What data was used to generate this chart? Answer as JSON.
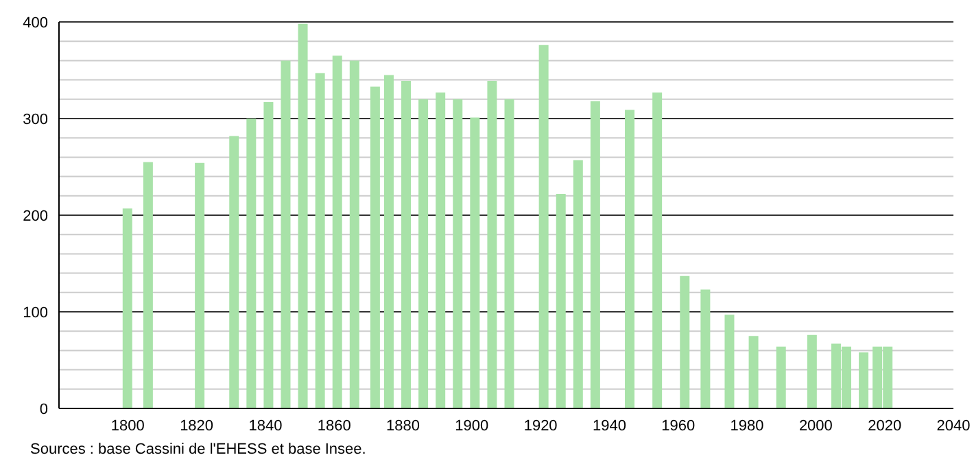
{
  "chart_data": {
    "type": "bar",
    "x": [
      1800,
      1806,
      1821,
      1831,
      1836,
      1841,
      1846,
      1851,
      1856,
      1861,
      1866,
      1872,
      1876,
      1881,
      1886,
      1891,
      1896,
      1901,
      1906,
      1911,
      1921,
      1926,
      1931,
      1936,
      1946,
      1954,
      1962,
      1968,
      1975,
      1982,
      1990,
      1999,
      2006,
      2009,
      2014,
      2018,
      2021
    ],
    "values": [
      207,
      255,
      254,
      282,
      300,
      317,
      360,
      398,
      347,
      365,
      360,
      333,
      345,
      339,
      320,
      327,
      320,
      301,
      339,
      320,
      376,
      222,
      257,
      318,
      309,
      327,
      137,
      123,
      97,
      75,
      64,
      76,
      67,
      64,
      58,
      64,
      64
    ],
    "color": "#a8e2a8",
    "xlim": [
      1780,
      2040
    ],
    "xticks": [
      1800,
      1820,
      1840,
      1860,
      1880,
      1900,
      1920,
      1940,
      1960,
      1980,
      2000,
      2020,
      2040
    ],
    "ylim": [
      0,
      400
    ],
    "yticks": [
      0,
      {
        "value": 20,
        "label": null
      },
      {
        "value": 40,
        "label": null
      },
      {
        "value": 60,
        "label": null
      },
      {
        "value": 80,
        "label": null
      },
      100,
      {
        "value": 120,
        "label": null
      },
      {
        "value": 140,
        "label": null
      },
      {
        "value": 160,
        "label": null
      },
      {
        "value": 180,
        "label": null
      },
      200,
      {
        "value": 220,
        "label": null
      },
      {
        "value": 240,
        "label": null
      },
      {
        "value": 260,
        "label": null
      },
      {
        "value": 280,
        "label": null
      },
      300,
      {
        "value": 320,
        "label": null
      },
      {
        "value": 340,
        "label": null
      },
      {
        "value": 360,
        "label": null
      },
      {
        "value": 380,
        "label": null
      },
      400
    ],
    "grid": "y",
    "annotations": [
      "Sources : base Cassini de l'EHESS et base Insee."
    ]
  }
}
